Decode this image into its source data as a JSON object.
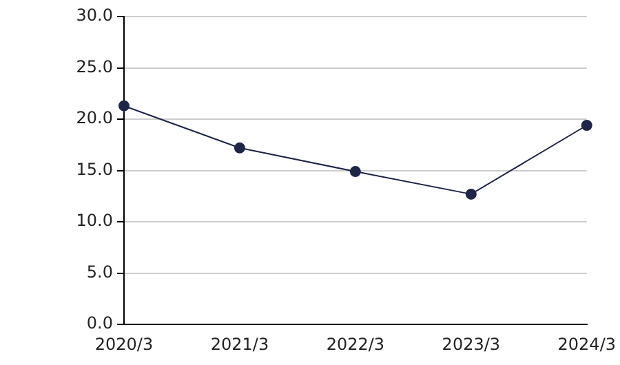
{
  "chart_data": {
    "type": "line",
    "categories": [
      "2020/3",
      "2021/3",
      "2022/3",
      "2023/3",
      "2024/3"
    ],
    "series": [
      {
        "color": "#1e2548",
        "values": [
          21.3,
          17.2,
          14.9,
          12.7,
          19.4
        ]
      }
    ],
    "ylim": [
      0,
      30
    ],
    "yticks": [
      {
        "value": 0,
        "label": "0.0"
      },
      {
        "value": 5,
        "label": "5.0"
      },
      {
        "value": 10,
        "label": "10.0"
      },
      {
        "value": 15,
        "label": "15.0"
      },
      {
        "value": 20,
        "label": "20.0"
      },
      {
        "value": 25,
        "label": "25.0"
      },
      {
        "value": 30,
        "label": "30.0"
      }
    ],
    "grid": "y",
    "legend": false,
    "marker": "circle",
    "line_style": "solid"
  }
}
